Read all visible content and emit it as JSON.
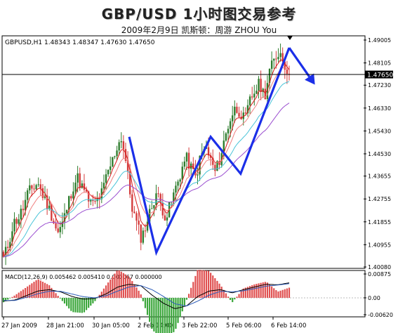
{
  "header": {
    "title": "GBP/USD 1小时图交易参考",
    "subtitle": "2009年2月9日   凯斯顿：周游 ZHOU You"
  },
  "chart_window": {
    "info": "GBPUSD,H1  1.48343 1.48347 1.47630 1.47650",
    "current_price_label": "1.47650",
    "macd_info": "MACD(12,26,9) 0.005462 0.005410 0.000067 0.000000"
  },
  "colors": {
    "bull_candle": "#2e7d2e",
    "bear_candle": "#d43c3c",
    "ma_fast": "#d61818",
    "ma_mid": "#f08080",
    "ma_slow": "#4ac4d8",
    "ma_long": "#9b4fd0",
    "macd_positive": "#e05050",
    "macd_negative": "#3aa63a",
    "forecast_arrow": "#1b2fe8"
  },
  "chart_data": [
    {
      "type": "candlestick",
      "title": "GBPUSD,H1",
      "ylim": [
        1.4008,
        1.49005
      ],
      "y_ticks": [
        "1.49005",
        "1.48105",
        "1.47230",
        "1.46330",
        "1.45430",
        "1.44530",
        "1.43655",
        "1.42755",
        "1.41855",
        "1.40955",
        "1.40080"
      ],
      "x_ticks": [
        "27 Jan 2009",
        "28 Jan 21:00",
        "30 Jan 05:00",
        "2 Feb 14:00",
        "3 Feb 22:00",
        "5 Feb 06:00",
        "6 Feb 14:00"
      ],
      "close_path": [
        1.404,
        1.41,
        1.418,
        1.42,
        1.424,
        1.43,
        1.432,
        1.434,
        1.429,
        1.425,
        1.42,
        1.414,
        1.418,
        1.425,
        1.432,
        1.436,
        1.432,
        1.428,
        1.425,
        1.427,
        1.43,
        1.437,
        1.442,
        1.448,
        1.452,
        1.44,
        1.425,
        1.418,
        1.412,
        1.418,
        1.424,
        1.43,
        1.425,
        1.42,
        1.426,
        1.432,
        1.438,
        1.444,
        1.44,
        1.436,
        1.444,
        1.448,
        1.443,
        1.438,
        1.444,
        1.452,
        1.459,
        1.463,
        1.462,
        1.458,
        1.466,
        1.47,
        1.473,
        1.468,
        1.478,
        1.482,
        1.486,
        1.481,
        1.4765
      ],
      "forecast_zigzag": [
        {
          "t": 0.44,
          "price": 1.452
        },
        {
          "t": 0.535,
          "price": 1.4065
        },
        {
          "t": 0.725,
          "price": 1.452
        },
        {
          "t": 0.83,
          "price": 1.4375
        },
        {
          "t": 1.0,
          "price": 1.487
        },
        {
          "t": 1.09,
          "price": 1.4725
        }
      ],
      "current_price": 1.4765
    },
    {
      "type": "line",
      "title": "MACD(12,26,9)",
      "ylim": [
        -0.0062,
        0.00875
      ],
      "y_ticks": [
        "0.00875",
        "0.00",
        "-0.00620"
      ],
      "values_path": [
        -0.0012,
        -0.0008,
        0.0008,
        0.0025,
        0.003,
        0.0022,
        0.0005,
        -0.0005,
        -0.0002,
        0.0015,
        0.004,
        0.005,
        0.0045,
        0.001,
        -0.002,
        -0.004,
        -0.003,
        0.0005,
        0.0025,
        0.003,
        0.0018,
        0.003,
        0.004,
        0.005,
        0.0048,
        0.0055
      ],
      "signal_path": [
        -0.001,
        -0.001,
        0.0002,
        0.0015,
        0.0024,
        0.0024,
        0.0014,
        0.0004,
        0.0,
        0.0008,
        0.0025,
        0.004,
        0.0045,
        0.003,
        0.0005,
        -0.0022,
        -0.003,
        -0.0012,
        0.001,
        0.0024,
        0.0022,
        0.0026,
        0.0034,
        0.0043,
        0.0047,
        0.0052
      ]
    }
  ]
}
